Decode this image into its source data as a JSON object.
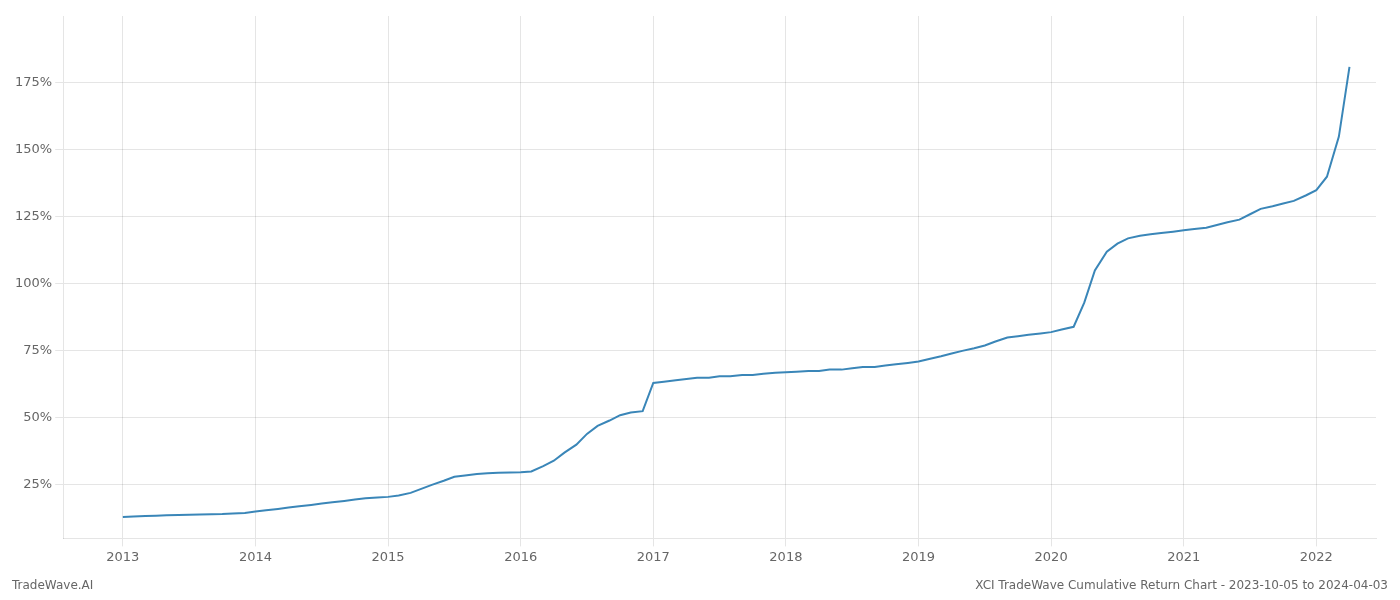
{
  "chart_data": {
    "type": "line",
    "annotations": [
      "TradeWave.AI",
      "XCI TradeWave Cumulative Return Chart - 2023-10-05 to 2024-04-03"
    ],
    "color": "#3a86b8",
    "grid": true,
    "x": [
      2013.0,
      2013.08,
      2013.17,
      2013.25,
      2013.33,
      2013.42,
      2013.5,
      2013.58,
      2013.67,
      2013.75,
      2013.83,
      2013.92,
      2014.0,
      2014.08,
      2014.17,
      2014.25,
      2014.33,
      2014.42,
      2014.5,
      2014.58,
      2014.67,
      2014.75,
      2014.83,
      2014.92,
      2015.0,
      2015.08,
      2015.17,
      2015.25,
      2015.33,
      2015.42,
      2015.5,
      2015.58,
      2015.67,
      2015.75,
      2015.83,
      2015.92,
      2016.0,
      2016.08,
      2016.17,
      2016.25,
      2016.33,
      2016.42,
      2016.5,
      2016.58,
      2016.67,
      2016.75,
      2016.83,
      2016.92,
      2017.0,
      2017.08,
      2017.17,
      2017.25,
      2017.33,
      2017.42,
      2017.5,
      2017.58,
      2017.67,
      2017.75,
      2017.83,
      2017.92,
      2018.0,
      2018.08,
      2018.17,
      2018.25,
      2018.33,
      2018.42,
      2018.5,
      2018.58,
      2018.67,
      2018.75,
      2018.83,
      2018.92,
      2019.0,
      2019.08,
      2019.17,
      2019.25,
      2019.33,
      2019.42,
      2019.5,
      2019.58,
      2019.67,
      2019.75,
      2019.83,
      2019.92,
      2020.0,
      2020.08,
      2020.17,
      2020.25,
      2020.33,
      2020.42,
      2020.5,
      2020.58,
      2020.67,
      2020.75,
      2020.83,
      2020.92,
      2021.0,
      2021.08,
      2021.17,
      2021.25,
      2021.33,
      2021.42,
      2021.5,
      2021.58,
      2021.67,
      2021.75,
      2021.83,
      2021.92,
      2022.0,
      2022.08,
      2022.17,
      2022.25
    ],
    "values": [
      13,
      13.2,
      13.4,
      13.5,
      13.6,
      13.7,
      13.8,
      13.9,
      14.0,
      14.1,
      14.3,
      14.5,
      15,
      15.5,
      16,
      16.5,
      17,
      17.5,
      18,
      18.5,
      19,
      19.5,
      20,
      20.3,
      20.5,
      21,
      22,
      23.5,
      25,
      26.5,
      28,
      28.5,
      29,
      29.3,
      29.5,
      29.6,
      29.7,
      30,
      32,
      34,
      37,
      40,
      44,
      47,
      49,
      51,
      52,
      52.5,
      63,
      63.5,
      64,
      64.5,
      65,
      65,
      65.5,
      65.5,
      66,
      66,
      66.5,
      66.8,
      67,
      67.2,
      67.5,
      67.5,
      68,
      68,
      68.5,
      69,
      69,
      69.5,
      70,
      70.5,
      71,
      72,
      73,
      74,
      75,
      76,
      77,
      78.5,
      80,
      80.5,
      81,
      81.5,
      82,
      83,
      84,
      93,
      105,
      112,
      115,
      117,
      118,
      118.5,
      119,
      119.5,
      120,
      120.5,
      121,
      122,
      123,
      124,
      126,
      128,
      129,
      130,
      131,
      133,
      135,
      140,
      155,
      181
    ],
    "xlim": [
      2012.55,
      2022.45
    ],
    "xticks": [
      2013,
      2014,
      2015,
      2016,
      2017,
      2018,
      2019,
      2020,
      2021,
      2022
    ],
    "ylim": [
      5,
      200
    ],
    "yticks": [
      {
        "value": 25,
        "label": "25%"
      },
      {
        "value": 50,
        "label": "50%"
      },
      {
        "value": 75,
        "label": "75%"
      },
      {
        "value": 100,
        "label": "100%"
      },
      {
        "value": 125,
        "label": "125%"
      },
      {
        "value": 150,
        "label": "150%"
      },
      {
        "value": 175,
        "label": "175%"
      }
    ]
  }
}
